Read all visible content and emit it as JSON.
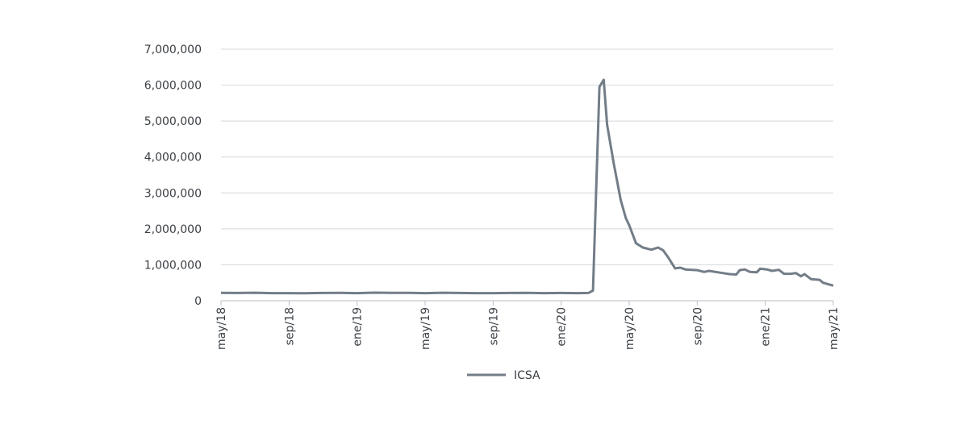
{
  "chart_data": {
    "type": "line",
    "x": [
      0,
      1,
      2,
      3,
      4,
      5,
      6,
      7,
      8,
      9,
      10,
      11,
      12,
      13,
      14,
      15,
      16,
      17,
      18,
      19,
      20,
      21,
      21.6,
      21.87,
      22.25,
      22.5,
      22.7,
      23.1,
      23.5,
      23.8,
      24,
      24.4,
      24.8,
      25.3,
      25.7,
      26,
      26.3,
      26.7,
      27,
      27.3,
      28,
      28.4,
      28.7,
      29.5,
      29.9,
      30.3,
      30.5,
      30.8,
      31.1,
      31.5,
      31.7,
      32.1,
      32.4,
      32.8,
      33.1,
      33.5,
      33.8,
      34.1,
      34.3,
      34.7,
      35.2,
      35.4,
      36
    ],
    "series": [
      {
        "name": "ICSA",
        "color": "#737d87",
        "values": [
          220000,
          215000,
          222000,
          212000,
          210000,
          208000,
          215000,
          218000,
          212000,
          225000,
          218000,
          220000,
          210000,
          222000,
          215000,
          212000,
          210000,
          215000,
          220000,
          212000,
          215000,
          210000,
          215000,
          280000,
          5950000,
          6150000,
          4900000,
          3800000,
          2800000,
          2300000,
          2100000,
          1600000,
          1480000,
          1420000,
          1480000,
          1400000,
          1200000,
          900000,
          920000,
          870000,
          850000,
          800000,
          830000,
          770000,
          740000,
          730000,
          850000,
          870000,
          800000,
          790000,
          890000,
          870000,
          830000,
          860000,
          750000,
          750000,
          770000,
          680000,
          740000,
          600000,
          580000,
          500000,
          420000
        ]
      }
    ],
    "xlim": [
      0,
      36
    ],
    "xticks": [
      {
        "value": 0,
        "label": "may/18"
      },
      {
        "value": 4,
        "label": "sep/18"
      },
      {
        "value": 8,
        "label": "ene/19"
      },
      {
        "value": 12,
        "label": "may/19"
      },
      {
        "value": 16,
        "label": "sep/19"
      },
      {
        "value": 20,
        "label": "ene/20"
      },
      {
        "value": 24,
        "label": "may/20"
      },
      {
        "value": 28,
        "label": "sep/20"
      },
      {
        "value": 32,
        "label": "ene/21"
      },
      {
        "value": 36,
        "label": "may/21"
      }
    ],
    "ylim": [
      0,
      7000000
    ],
    "yticks": [
      0,
      {
        "value": 1000000,
        "label": "1,000,000"
      },
      {
        "value": 2000000,
        "label": "2,000,000"
      },
      {
        "value": 3000000,
        "label": "3,000,000"
      },
      {
        "value": 4000000,
        "label": "4,000,000"
      },
      {
        "value": 5000000,
        "label": "5,000,000"
      },
      {
        "value": 6000000,
        "label": "6,000,000"
      },
      {
        "value": 7000000,
        "label": "7,000,000"
      }
    ],
    "grid": true
  }
}
